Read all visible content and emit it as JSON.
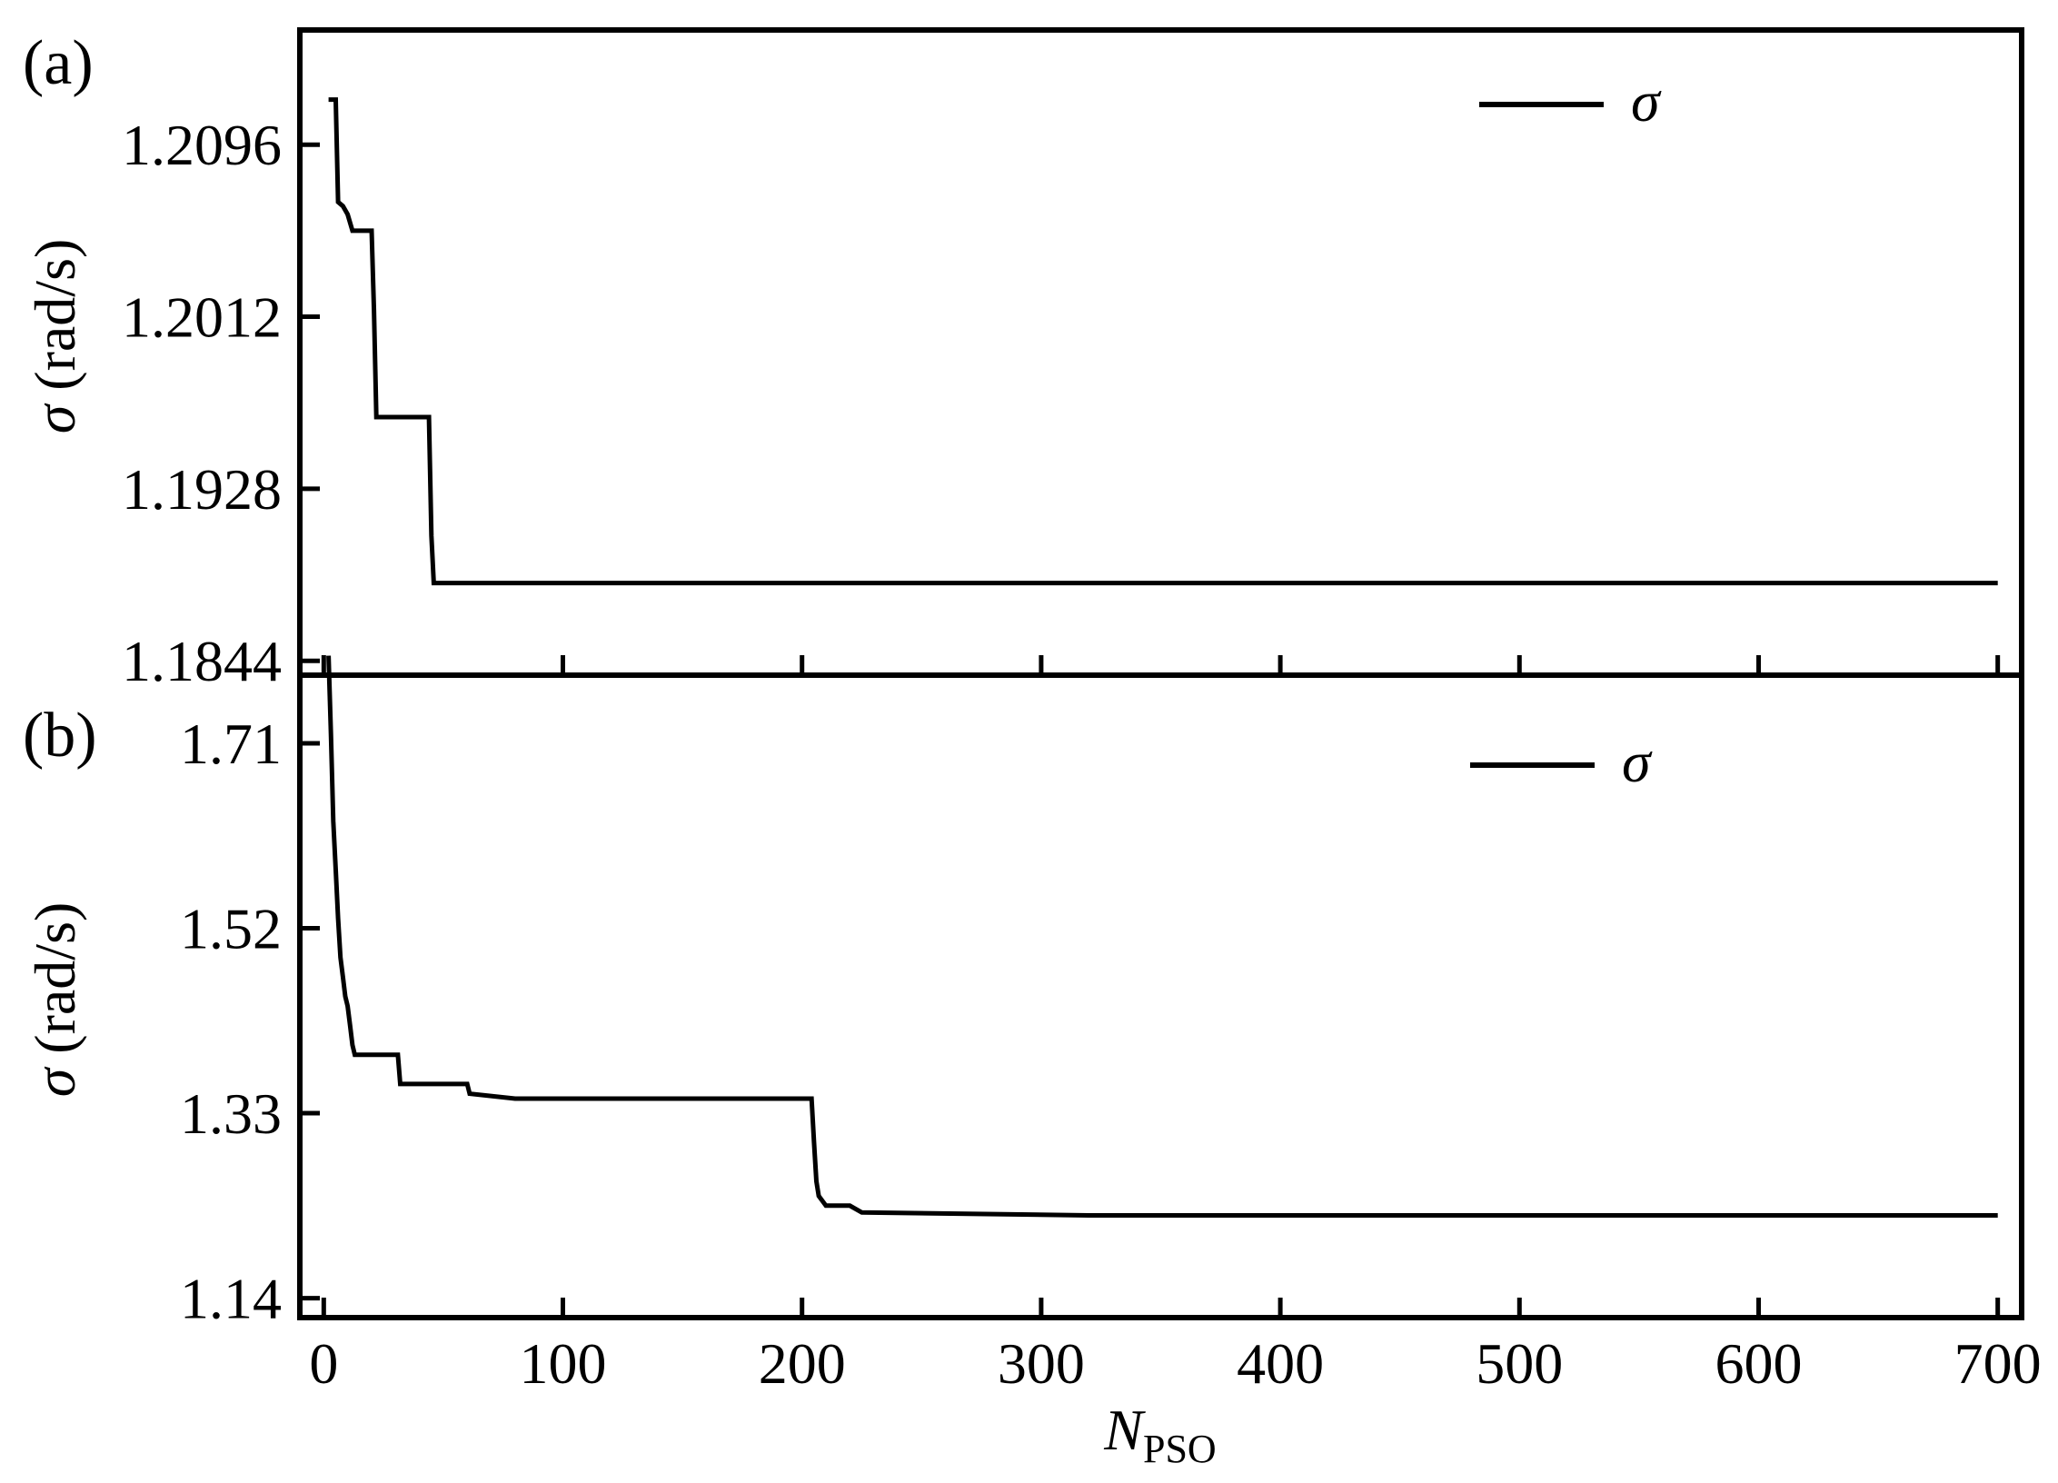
{
  "chart_data": [
    {
      "type": "line",
      "panel_label": "(a)",
      "ylabel_symbol": "σ",
      "ylabel_unit": " (rad/s)",
      "xlabel_main": "N",
      "xlabel_sub": "PSO",
      "xlim": [
        -10,
        710
      ],
      "ylim": [
        1.1837,
        1.2152
      ],
      "xticks": [
        0,
        100,
        200,
        300,
        400,
        500,
        600,
        700
      ],
      "yticks": [
        1.1844,
        1.1928,
        1.2012,
        1.2096
      ],
      "ytick_labels": [
        "1.1844",
        "1.1928",
        "1.2012",
        "1.2096"
      ],
      "legend_position": "top-right",
      "series": [
        {
          "name": "σ",
          "x": [
            2,
            5,
            6,
            8,
            10,
            12,
            20,
            21,
            22,
            44,
            45,
            46,
            700
          ],
          "y": [
            1.2118,
            1.2118,
            1.2068,
            1.2066,
            1.2062,
            1.2054,
            1.2054,
            1.2015,
            1.1963,
            1.1963,
            1.1905,
            1.1882,
            1.1882
          ]
        }
      ]
    },
    {
      "type": "line",
      "panel_label": "(b)",
      "ylabel_symbol": "σ",
      "ylabel_unit": " (rad/s)",
      "xlabel_main": "N",
      "xlabel_sub": "PSO",
      "xlim": [
        -10,
        710
      ],
      "ylim": [
        1.12,
        1.78
      ],
      "xticks": [
        0,
        100,
        200,
        300,
        400,
        500,
        600,
        700
      ],
      "xtick_labels": [
        "0",
        "100",
        "200",
        "300",
        "400",
        "500",
        "600",
        "700"
      ],
      "yticks": [
        1.14,
        1.33,
        1.52,
        1.71
      ],
      "ytick_labels": [
        "1.14",
        "1.33",
        "1.52",
        "1.71"
      ],
      "legend_position": "top-right",
      "series": [
        {
          "name": "σ",
          "x": [
            2,
            3,
            4,
            5,
            6,
            7,
            8,
            9,
            10,
            11,
            12,
            13,
            31,
            32,
            60,
            61,
            80,
            204,
            205,
            206,
            207,
            210,
            220,
            225,
            320,
            700
          ],
          "y": [
            1.8,
            1.72,
            1.63,
            1.58,
            1.53,
            1.49,
            1.47,
            1.45,
            1.44,
            1.42,
            1.4,
            1.39,
            1.39,
            1.36,
            1.36,
            1.35,
            1.345,
            1.345,
            1.3,
            1.26,
            1.245,
            1.235,
            1.235,
            1.228,
            1.225,
            1.225
          ]
        }
      ]
    }
  ]
}
